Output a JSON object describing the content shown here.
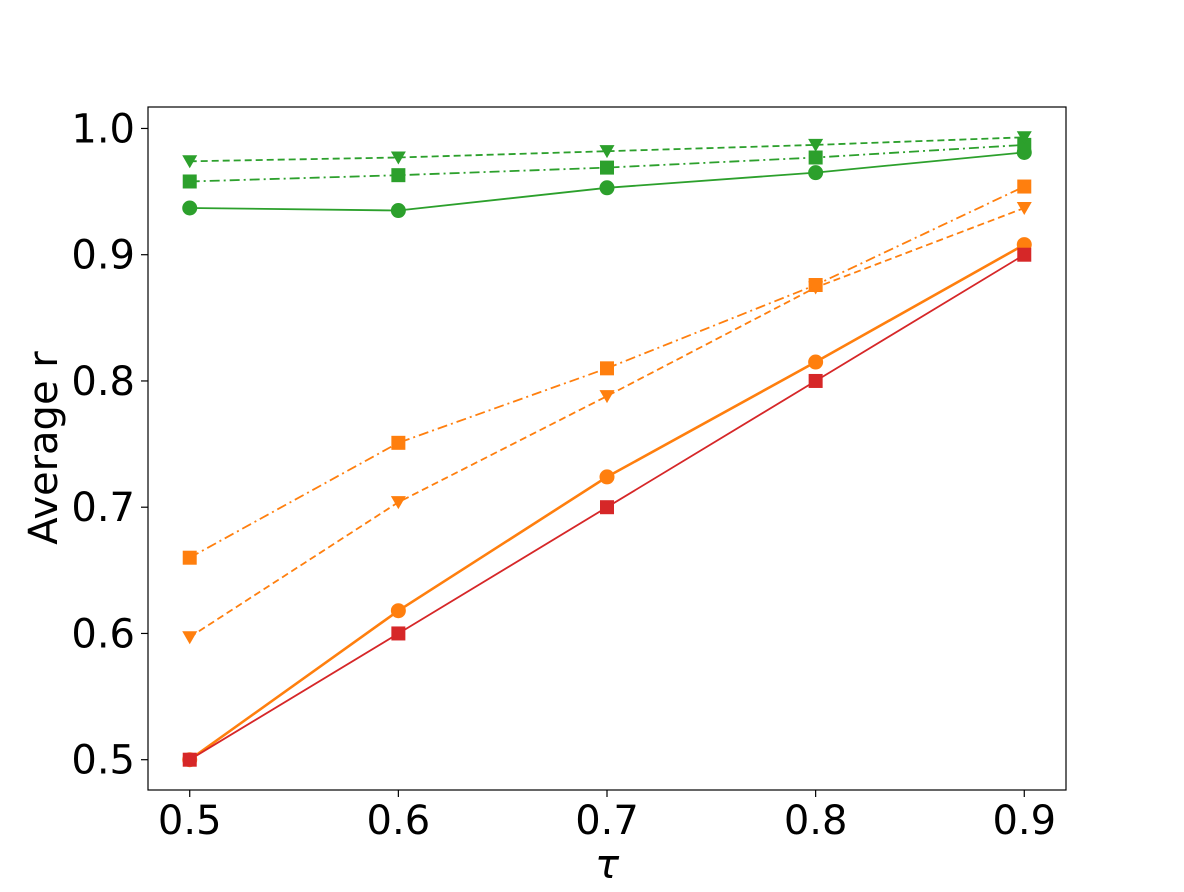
{
  "chart_data": {
    "type": "line",
    "xlabel": "τ",
    "ylabel": "Average r",
    "x": [
      0.5,
      0.6,
      0.7,
      0.8,
      0.9
    ],
    "x_tick_labels": [
      "0.5",
      "0.6",
      "0.7",
      "0.8",
      "0.9"
    ],
    "y_ticks": [
      0.5,
      0.6,
      0.7,
      0.8,
      0.9,
      1.0
    ],
    "y_tick_labels": [
      "0.5",
      "0.6",
      "0.7",
      "0.8",
      "0.9",
      "1.0"
    ],
    "xlim": [
      0.48,
      0.92
    ],
    "ylim": [
      0.476,
      1.017
    ],
    "grid": false,
    "legend": "none",
    "series": [
      {
        "color": "#2ca02c",
        "linestyle": "solid",
        "marker": "circle",
        "values": [
          0.937,
          0.935,
          0.953,
          0.965,
          0.981
        ]
      },
      {
        "color": "#2ca02c",
        "linestyle": "dashdot",
        "marker": "square",
        "values": [
          0.958,
          0.963,
          0.969,
          0.977,
          0.987
        ]
      },
      {
        "color": "#2ca02c",
        "linestyle": "dashed",
        "marker": "triangle-down",
        "values": [
          0.974,
          0.977,
          0.982,
          0.987,
          0.993
        ]
      },
      {
        "color": "#ff7f0e",
        "linestyle": "solid",
        "marker": "circle",
        "values": [
          0.5,
          0.618,
          0.724,
          0.815,
          0.908
        ]
      },
      {
        "color": "#ff7f0e",
        "linestyle": "dashdot",
        "marker": "square",
        "values": [
          0.66,
          0.751,
          0.81,
          0.876,
          0.954
        ]
      },
      {
        "color": "#ff7f0e",
        "linestyle": "dashed",
        "marker": "triangle-down",
        "values": [
          0.597,
          0.704,
          0.788,
          0.874,
          0.937
        ]
      },
      {
        "color": "#d62728",
        "linestyle": "solid",
        "marker": "square",
        "values": [
          0.5,
          0.6,
          0.7,
          0.8,
          0.9
        ]
      }
    ]
  }
}
